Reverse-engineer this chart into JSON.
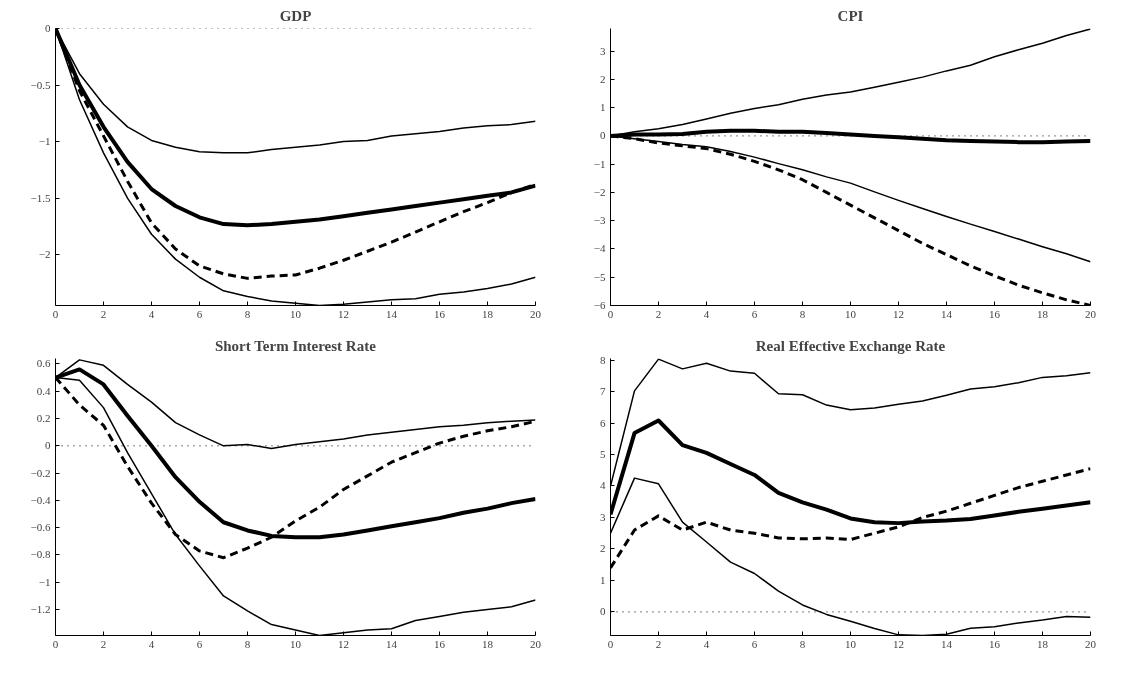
{
  "chart_data": [
    {
      "type": "line",
      "title": "GDP",
      "x": [
        0,
        1,
        2,
        3,
        4,
        5,
        6,
        7,
        8,
        9,
        10,
        11,
        12,
        13,
        14,
        15,
        16,
        17,
        18,
        19,
        20
      ],
      "xlim": [
        0,
        20
      ],
      "xticks": [
        0,
        2,
        4,
        6,
        8,
        10,
        12,
        14,
        16,
        18,
        20
      ],
      "ylim": [
        -2.45,
        0
      ],
      "yticks": [
        {
          "value": -2,
          "label": "−2"
        },
        {
          "value": -1.5,
          "label": "−1.5"
        },
        {
          "value": -1,
          "label": "−1"
        },
        {
          "value": -0.5,
          "label": "−0.5"
        },
        0
      ],
      "grid": false,
      "marker": "none",
      "ref_lines": [
        {
          "axis": "y",
          "value": 0,
          "line_style": "dotted",
          "color": "#000000"
        }
      ],
      "series": [
        {
          "color": "#000000",
          "line_style": "solid",
          "values": [
            0,
            -0.4,
            -0.67,
            -0.87,
            -0.99,
            -1.05,
            -1.09,
            -1.1,
            -1.1,
            -1.07,
            -1.05,
            -1.03,
            -1.0,
            -0.99,
            -0.95,
            -0.93,
            -0.91,
            -0.88,
            -0.86,
            -0.85,
            -0.82
          ]
        },
        {
          "color": "#000000",
          "line_style": "solid",
          "values": [
            0,
            -0.5,
            -0.87,
            -1.18,
            -1.42,
            -1.57,
            -1.67,
            -1.73,
            -1.74,
            -1.73,
            -1.71,
            -1.69,
            -1.66,
            -1.63,
            -1.6,
            -1.57,
            -1.54,
            -1.51,
            -1.48,
            -1.45,
            -1.39
          ]
        },
        {
          "color": "#000000",
          "line_style": "solid",
          "values": [
            0,
            -0.63,
            -1.1,
            -1.5,
            -1.82,
            -2.04,
            -2.2,
            -2.32,
            -2.37,
            -2.41,
            -2.43,
            -2.45,
            -2.44,
            -2.42,
            -2.4,
            -2.39,
            -2.35,
            -2.33,
            -2.3,
            -2.26,
            -2.2
          ]
        },
        {
          "color": "#000000",
          "line_style": "dashed",
          "values": [
            0,
            -0.55,
            -0.95,
            -1.35,
            -1.72,
            -1.95,
            -2.1,
            -2.17,
            -2.21,
            -2.19,
            -2.18,
            -2.12,
            -2.05,
            -1.97,
            -1.89,
            -1.8,
            -1.71,
            -1.62,
            -1.54,
            -1.45,
            -1.38
          ]
        }
      ]
    },
    {
      "type": "line",
      "title": "CPI",
      "x": [
        0,
        1,
        2,
        3,
        4,
        5,
        6,
        7,
        8,
        9,
        10,
        11,
        12,
        13,
        14,
        15,
        16,
        17,
        18,
        19,
        20
      ],
      "xlim": [
        0,
        20
      ],
      "xticks": [
        0,
        2,
        4,
        6,
        8,
        10,
        12,
        14,
        16,
        18,
        20
      ],
      "ylim": [
        -6,
        3.8
      ],
      "yticks": [
        {
          "value": -6,
          "label": "−6"
        },
        {
          "value": -5,
          "label": "−5"
        },
        {
          "value": -4,
          "label": "−4"
        },
        {
          "value": -3,
          "label": "−3"
        },
        {
          "value": -2,
          "label": "−2"
        },
        {
          "value": -1,
          "label": "−1"
        },
        0,
        1,
        2,
        3
      ],
      "grid": false,
      "marker": "none",
      "ref_lines": [
        {
          "axis": "y",
          "value": 0,
          "line_style": "dotted",
          "color": "#000000"
        }
      ],
      "series": [
        {
          "color": "#000000",
          "line_style": "solid",
          "values": [
            0,
            0.15,
            0.25,
            0.4,
            0.6,
            0.8,
            0.97,
            1.1,
            1.3,
            1.45,
            1.55,
            1.72,
            1.9,
            2.08,
            2.3,
            2.5,
            2.8,
            3.05,
            3.28,
            3.55,
            3.78
          ]
        },
        {
          "color": "#000000",
          "line_style": "solid",
          "values": [
            0,
            0.05,
            0.05,
            0.07,
            0.15,
            0.18,
            0.18,
            0.15,
            0.15,
            0.1,
            0.05,
            0,
            -0.05,
            -0.1,
            -0.15,
            -0.18,
            -0.2,
            -0.22,
            -0.22,
            -0.2,
            -0.18
          ]
        },
        {
          "color": "#000000",
          "line_style": "solid",
          "values": [
            0,
            -0.1,
            -0.2,
            -0.3,
            -0.38,
            -0.55,
            -0.75,
            -0.98,
            -1.2,
            -1.45,
            -1.67,
            -1.98,
            -2.28,
            -2.57,
            -2.85,
            -3.12,
            -3.38,
            -3.65,
            -3.92,
            -4.17,
            -4.45
          ]
        },
        {
          "color": "#000000",
          "line_style": "dashed",
          "values": [
            0,
            -0.1,
            -0.25,
            -0.35,
            -0.45,
            -0.65,
            -0.9,
            -1.2,
            -1.55,
            -2.0,
            -2.45,
            -2.9,
            -3.35,
            -3.8,
            -4.2,
            -4.6,
            -4.95,
            -5.28,
            -5.55,
            -5.8,
            -6.0
          ]
        }
      ]
    },
    {
      "type": "line",
      "title": "Short Term Interest Rate",
      "x": [
        0,
        1,
        2,
        3,
        4,
        5,
        6,
        7,
        8,
        9,
        10,
        11,
        12,
        13,
        14,
        15,
        16,
        17,
        18,
        19,
        20
      ],
      "xlim": [
        0,
        20
      ],
      "xticks": [
        0,
        2,
        4,
        6,
        8,
        10,
        12,
        14,
        16,
        18,
        20
      ],
      "ylim": [
        -1.39,
        0.64
      ],
      "yticks": [
        {
          "value": -1.2,
          "label": "−1.2"
        },
        {
          "value": -1,
          "label": "−1"
        },
        {
          "value": -0.8,
          "label": "−0.8"
        },
        {
          "value": -0.6,
          "label": "−0.6"
        },
        {
          "value": -0.4,
          "label": "−0.4"
        },
        {
          "value": -0.2,
          "label": "−0.2"
        },
        0,
        0.2,
        0.4,
        0.6
      ],
      "grid": false,
      "marker": "none",
      "ref_lines": [
        {
          "axis": "y",
          "value": 0,
          "line_style": "dotted",
          "color": "#000000"
        }
      ],
      "series": [
        {
          "color": "#000000",
          "line_style": "solid",
          "values": [
            0.5,
            0.63,
            0.59,
            0.45,
            0.32,
            0.17,
            0.08,
            0.0,
            0.01,
            -0.02,
            0.01,
            0.03,
            0.05,
            0.08,
            0.1,
            0.12,
            0.14,
            0.15,
            0.17,
            0.18,
            0.19
          ]
        },
        {
          "color": "#000000",
          "line_style": "solid",
          "values": [
            0.5,
            0.56,
            0.45,
            0.22,
            0.0,
            -0.23,
            -0.41,
            -0.56,
            -0.62,
            -0.66,
            -0.67,
            -0.67,
            -0.65,
            -0.62,
            -0.59,
            -0.56,
            -0.53,
            -0.49,
            -0.46,
            -0.42,
            -0.39
          ]
        },
        {
          "color": "#000000",
          "line_style": "solid",
          "values": [
            0.5,
            0.48,
            0.28,
            -0.05,
            -0.35,
            -0.65,
            -0.88,
            -1.1,
            -1.21,
            -1.31,
            -1.35,
            -1.39,
            -1.37,
            -1.35,
            -1.34,
            -1.28,
            -1.25,
            -1.22,
            -1.2,
            -1.18,
            -1.13
          ]
        },
        {
          "color": "#000000",
          "line_style": "dashed",
          "values": [
            0.5,
            0.3,
            0.15,
            -0.15,
            -0.42,
            -0.65,
            -0.77,
            -0.82,
            -0.75,
            -0.67,
            -0.55,
            -0.45,
            -0.32,
            -0.22,
            -0.12,
            -0.05,
            0.02,
            0.07,
            0.11,
            0.14,
            0.18
          ]
        }
      ]
    },
    {
      "type": "line",
      "title": "Real Effective Exchange Rate",
      "x": [
        0,
        1,
        2,
        3,
        4,
        5,
        6,
        7,
        8,
        9,
        10,
        11,
        12,
        13,
        14,
        15,
        16,
        17,
        18,
        19,
        20
      ],
      "xlim": [
        0,
        20
      ],
      "xticks": [
        0,
        2,
        4,
        6,
        8,
        10,
        12,
        14,
        16,
        18,
        20
      ],
      "ylim": [
        -0.75,
        8.05
      ],
      "yticks": [
        0,
        1,
        2,
        3,
        4,
        5,
        6,
        7,
        8
      ],
      "grid": false,
      "marker": "none",
      "ref_lines": [
        {
          "axis": "y",
          "value": 0,
          "line_style": "dotted",
          "color": "#000000"
        }
      ],
      "series": [
        {
          "color": "#000000",
          "line_style": "solid",
          "values": [
            4,
            7.02,
            8.03,
            7.72,
            7.9,
            7.65,
            7.58,
            6.93,
            6.9,
            6.57,
            6.42,
            6.48,
            6.6,
            6.7,
            6.88,
            7.08,
            7.15,
            7.28,
            7.45,
            7.5,
            7.6
          ]
        },
        {
          "color": "#000000",
          "line_style": "solid",
          "values": [
            3.1,
            5.68,
            6.08,
            5.3,
            5.05,
            4.7,
            4.35,
            3.78,
            3.48,
            3.25,
            2.97,
            2.85,
            2.82,
            2.87,
            2.9,
            2.95,
            3.06,
            3.18,
            3.28,
            3.38,
            3.48
          ]
        },
        {
          "color": "#000000",
          "line_style": "solid",
          "values": [
            2.5,
            4.25,
            4.07,
            2.85,
            2.22,
            1.58,
            1.22,
            0.66,
            0.22,
            -0.08,
            -0.3,
            -0.53,
            -0.73,
            -0.75,
            -0.71,
            -0.52,
            -0.47,
            -0.35,
            -0.26,
            -0.15,
            -0.17
          ]
        },
        {
          "color": "#000000",
          "line_style": "dashed",
          "values": [
            1.4,
            2.6,
            3.05,
            2.6,
            2.85,
            2.6,
            2.5,
            2.35,
            2.32,
            2.35,
            2.3,
            2.5,
            2.7,
            3.0,
            3.2,
            3.45,
            3.7,
            3.95,
            4.15,
            4.35,
            4.55
          ]
        }
      ]
    }
  ]
}
